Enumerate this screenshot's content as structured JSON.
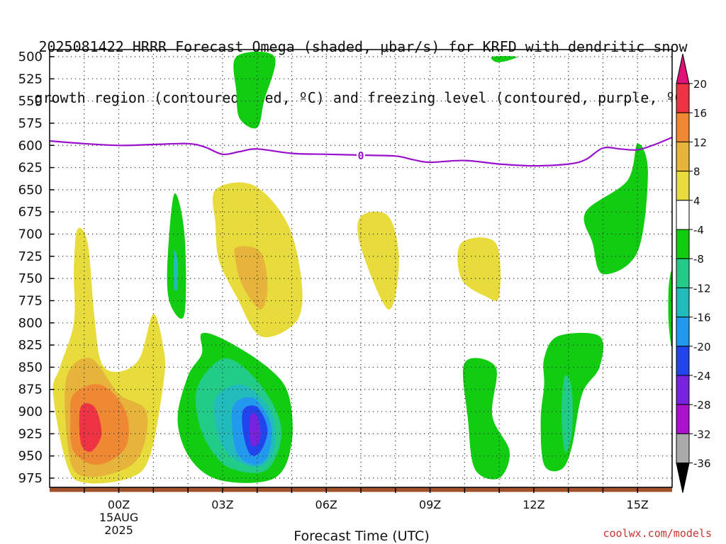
{
  "title_line1": "2025081422 HRRR Forecast Omega (shaded, μbar/s) for KRFD with dendritic snow",
  "title_line2": "growth region (contoured, red, ºC) and freezing level (contoured, purple, ºC)",
  "watermark": "coolwx.com/models",
  "chart_data": {
    "type": "contour",
    "title": "2025081422 HRRR Forecast Omega (shaded, μbar/s) for KRFD with dendritic snow growth region (contoured, red, ºC) and freezing level (contoured, purple, ºC)",
    "xlabel": "Forecast Time (UTC)",
    "ylabel": "",
    "x_ticks": [
      {
        "label": "00Z",
        "sub": [
          "15AUG",
          "2025"
        ],
        "hour": 0
      },
      {
        "label": "03Z",
        "hour": 3
      },
      {
        "label": "06Z",
        "hour": 6
      },
      {
        "label": "09Z",
        "hour": 9
      },
      {
        "label": "12Z",
        "hour": 12
      },
      {
        "label": "15Z",
        "hour": 15
      }
    ],
    "xlim_hours": [
      -2,
      16
    ],
    "y_ticks": [
      500,
      525,
      550,
      575,
      600,
      625,
      650,
      675,
      700,
      725,
      750,
      775,
      800,
      825,
      850,
      875,
      900,
      925,
      950,
      975
    ],
    "ylim_mb": [
      500,
      990
    ],
    "y_inverted": true,
    "grid": "dotted",
    "colorbar": {
      "labels": [
        "20",
        "16",
        "12",
        "8",
        "4",
        "-4",
        "-8",
        "-12",
        "-16",
        "-20",
        "-24",
        "-28",
        "-32",
        "-36"
      ],
      "bands": [
        {
          "from": 16,
          "to": 20,
          "color": "#ee3344"
        },
        {
          "from": 12,
          "to": 16,
          "color": "#ee8833"
        },
        {
          "from": 8,
          "to": 12,
          "color": "#e6b43a"
        },
        {
          "from": 4,
          "to": 8,
          "color": "#e8dc3c"
        },
        {
          "from": -4,
          "to": 4,
          "color": "#ffffff"
        },
        {
          "from": -8,
          "to": -4,
          "color": "#11cc11"
        },
        {
          "from": -12,
          "to": -8,
          "color": "#22cc88"
        },
        {
          "from": -16,
          "to": -12,
          "color": "#22bbbb"
        },
        {
          "from": -20,
          "to": -16,
          "color": "#2299ee"
        },
        {
          "from": -24,
          "to": -20,
          "color": "#2244ee"
        },
        {
          "from": -28,
          "to": -24,
          "color": "#7722dd"
        },
        {
          "from": -32,
          "to": -28,
          "color": "#aa11cc"
        },
        {
          "from": -36,
          "to": -32,
          "color": "#aaaaaa"
        }
      ],
      "over_color": "#dd1177",
      "under_color": "#000000"
    },
    "freezing_level_contour": {
      "label": "0",
      "color": "#9911cc",
      "points": [
        [
          -2.0,
          595
        ],
        [
          -1.0,
          598
        ],
        [
          0.0,
          600
        ],
        [
          1.0,
          599
        ],
        [
          2.0,
          598
        ],
        [
          2.5,
          602
        ],
        [
          3.0,
          610
        ],
        [
          3.5,
          607
        ],
        [
          4.0,
          604
        ],
        [
          5.0,
          609
        ],
        [
          6.0,
          610
        ],
        [
          7.0,
          611
        ],
        [
          8.0,
          612
        ],
        [
          8.5,
          616
        ],
        [
          9.0,
          619
        ],
        [
          10.0,
          617
        ],
        [
          11.0,
          621
        ],
        [
          12.0,
          623
        ],
        [
          13.0,
          621
        ],
        [
          13.5,
          616
        ],
        [
          14.0,
          603
        ],
        [
          14.5,
          604
        ],
        [
          15.0,
          605
        ],
        [
          15.5,
          599
        ],
        [
          16.0,
          591
        ]
      ]
    },
    "omega_regions": [
      {
        "value": -6,
        "color": "#11cc11",
        "points": [
          [
            3.4,
            500
          ],
          [
            4.5,
            500
          ],
          [
            4.2,
            550
          ],
          [
            4.0,
            580
          ],
          [
            3.5,
            570
          ],
          [
            3.4,
            540
          ]
        ]
      },
      {
        "value": -6,
        "color": "#11cc11",
        "points": [
          [
            10.8,
            500
          ],
          [
            11.5,
            500
          ],
          [
            11.2,
            505
          ],
          [
            10.9,
            506
          ]
        ]
      },
      {
        "value": 6,
        "color": "#e8dc3c",
        "points": [
          [
            2.8,
            650
          ],
          [
            3.9,
            645
          ],
          [
            4.9,
            690
          ],
          [
            5.3,
            760
          ],
          [
            5.1,
            800
          ],
          [
            4.1,
            815
          ],
          [
            3.4,
            770
          ],
          [
            2.9,
            730
          ],
          [
            2.8,
            690
          ]
        ]
      },
      {
        "value": 10,
        "color": "#e6b43a",
        "points": [
          [
            3.4,
            715
          ],
          [
            4.1,
            720
          ],
          [
            4.3,
            760
          ],
          [
            4.1,
            785
          ],
          [
            3.6,
            760
          ],
          [
            3.4,
            735
          ]
        ]
      },
      {
        "value": 6,
        "color": "#e8dc3c",
        "points": [
          [
            7.0,
            680
          ],
          [
            7.8,
            680
          ],
          [
            8.1,
            730
          ],
          [
            7.8,
            785
          ],
          [
            7.0,
            715
          ]
        ]
      },
      {
        "value": 6,
        "color": "#e8dc3c",
        "points": [
          [
            9.9,
            710
          ],
          [
            10.9,
            710
          ],
          [
            11.0,
            770
          ],
          [
            10.6,
            770
          ],
          [
            9.9,
            750
          ]
        ]
      },
      {
        "value": -6,
        "color": "#11cc11",
        "points": [
          [
            1.6,
            655
          ],
          [
            1.9,
            700
          ],
          [
            1.9,
            790
          ],
          [
            1.5,
            780
          ],
          [
            1.4,
            740
          ]
        ]
      },
      {
        "value": -14,
        "color": "#22bbbb",
        "points": [
          [
            1.6,
            720
          ],
          [
            1.7,
            730
          ],
          [
            1.7,
            760
          ],
          [
            1.6,
            760
          ]
        ]
      },
      {
        "value": 6,
        "color": "#e8dc3c",
        "points": [
          [
            -1.2,
            695
          ],
          [
            -0.9,
            710
          ],
          [
            -0.7,
            795
          ],
          [
            -0.5,
            845
          ],
          [
            0.0,
            855
          ],
          [
            0.6,
            840
          ],
          [
            1.0,
            790
          ],
          [
            1.3,
            830
          ],
          [
            1.3,
            865
          ],
          [
            0.9,
            950
          ],
          [
            0.3,
            975
          ],
          [
            -1.0,
            980
          ],
          [
            -1.5,
            960
          ],
          [
            -1.9,
            880
          ],
          [
            -1.7,
            850
          ],
          [
            -1.3,
            800
          ],
          [
            -1.3,
            740
          ]
        ]
      },
      {
        "value": 10,
        "color": "#e6b43a",
        "points": [
          [
            -1.5,
            860
          ],
          [
            -0.8,
            840
          ],
          [
            0.0,
            880
          ],
          [
            0.8,
            900
          ],
          [
            0.6,
            950
          ],
          [
            -0.2,
            970
          ],
          [
            -1.2,
            970
          ],
          [
            -1.5,
            930
          ]
        ]
      },
      {
        "value": 14,
        "color": "#ee8833",
        "points": [
          [
            -1.3,
            880
          ],
          [
            -0.5,
            870
          ],
          [
            0.2,
            900
          ],
          [
            0.2,
            940
          ],
          [
            -0.6,
            960
          ],
          [
            -1.3,
            945
          ],
          [
            -1.4,
            910
          ]
        ]
      },
      {
        "value": 18,
        "color": "#ee3344",
        "points": [
          [
            -1.1,
            895
          ],
          [
            -0.7,
            895
          ],
          [
            -0.5,
            925
          ],
          [
            -0.8,
            945
          ],
          [
            -1.1,
            935
          ]
        ]
      },
      {
        "value": -6,
        "color": "#11cc11",
        "points": [
          [
            2.4,
            812
          ],
          [
            3.1,
            820
          ],
          [
            4.3,
            850
          ],
          [
            4.9,
            880
          ],
          [
            5.0,
            935
          ],
          [
            4.5,
            975
          ],
          [
            3.0,
            978
          ],
          [
            2.1,
            955
          ],
          [
            1.7,
            910
          ],
          [
            2.0,
            860
          ],
          [
            2.4,
            835
          ]
        ]
      },
      {
        "value": -10,
        "color": "#22cc88",
        "points": [
          [
            2.3,
            870
          ],
          [
            3.1,
            840
          ],
          [
            4.1,
            870
          ],
          [
            4.7,
            920
          ],
          [
            4.3,
            965
          ],
          [
            3.3,
            965
          ],
          [
            2.7,
            945
          ],
          [
            2.3,
            910
          ]
        ]
      },
      {
        "value": -14,
        "color": "#22bbbb",
        "points": [
          [
            2.8,
            885
          ],
          [
            3.6,
            870
          ],
          [
            4.4,
            900
          ],
          [
            4.5,
            940
          ],
          [
            4.1,
            962
          ],
          [
            3.4,
            955
          ],
          [
            2.9,
            930
          ]
        ]
      },
      {
        "value": -18,
        "color": "#2299ee",
        "points": [
          [
            3.3,
            895
          ],
          [
            3.9,
            885
          ],
          [
            4.4,
            915
          ],
          [
            4.3,
            950
          ],
          [
            3.9,
            960
          ],
          [
            3.4,
            945
          ]
        ]
      },
      {
        "value": -22,
        "color": "#2244ee",
        "points": [
          [
            3.6,
            898
          ],
          [
            4.0,
            895
          ],
          [
            4.3,
            920
          ],
          [
            4.1,
            945
          ],
          [
            3.8,
            948
          ],
          [
            3.6,
            925
          ]
        ]
      },
      {
        "value": -26,
        "color": "#7722dd",
        "points": [
          [
            3.8,
            905
          ],
          [
            4.0,
            905
          ],
          [
            4.1,
            925
          ],
          [
            4.0,
            938
          ],
          [
            3.8,
            935
          ]
        ]
      },
      {
        "value": -6,
        "color": "#11cc11",
        "points": [
          [
            10.0,
            845
          ],
          [
            10.9,
            850
          ],
          [
            10.8,
            905
          ],
          [
            11.3,
            945
          ],
          [
            11.0,
            975
          ],
          [
            10.3,
            965
          ],
          [
            10.1,
            910
          ]
        ]
      },
      {
        "value": -6,
        "color": "#11cc11",
        "points": [
          [
            12.3,
            840
          ],
          [
            12.7,
            815
          ],
          [
            13.9,
            815
          ],
          [
            13.9,
            850
          ],
          [
            13.4,
            880
          ],
          [
            13.1,
            940
          ],
          [
            12.8,
            965
          ],
          [
            12.3,
            960
          ],
          [
            12.2,
            910
          ],
          [
            12.3,
            870
          ]
        ]
      },
      {
        "value": -10,
        "color": "#22cc88",
        "points": [
          [
            12.9,
            860
          ],
          [
            13.1,
            875
          ],
          [
            13.1,
            925
          ],
          [
            12.9,
            945
          ],
          [
            12.8,
            900
          ]
        ]
      },
      {
        "value": -6,
        "color": "#11cc11",
        "points": [
          [
            13.5,
            675
          ],
          [
            14.7,
            640
          ],
          [
            15.0,
            598
          ],
          [
            15.3,
            630
          ],
          [
            15.0,
            720
          ],
          [
            14.0,
            745
          ],
          [
            13.7,
            710
          ]
        ]
      },
      {
        "value": -6,
        "color": "#11cc11",
        "points": [
          [
            15.9,
            760
          ],
          [
            16.0,
            745
          ],
          [
            16.0,
            825
          ],
          [
            15.9,
            800
          ]
        ]
      }
    ]
  }
}
